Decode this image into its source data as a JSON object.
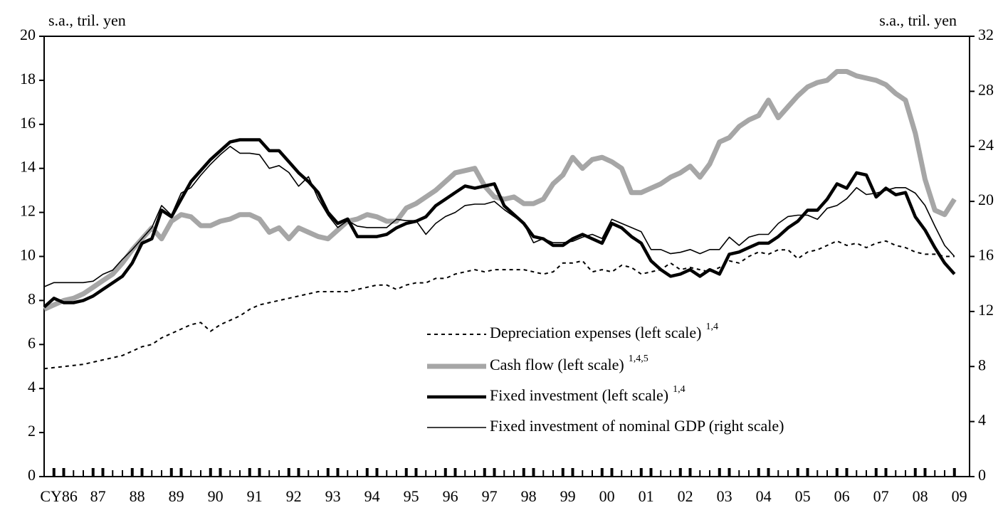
{
  "chart_data": {
    "type": "line",
    "y_label": "s.a., tril. yen",
    "y2_label": "s.a., tril. yen",
    "categories": [
      null,
      "CY86",
      null,
      null,
      null,
      "87",
      null,
      null,
      null,
      "88",
      null,
      null,
      null,
      "89",
      null,
      null,
      null,
      "90",
      null,
      null,
      null,
      "91",
      null,
      null,
      null,
      "92",
      null,
      null,
      null,
      "93",
      null,
      null,
      null,
      "94",
      null,
      null,
      null,
      "95",
      null,
      null,
      null,
      "96",
      null,
      null,
      null,
      "97",
      null,
      null,
      null,
      "98",
      null,
      null,
      null,
      "99",
      null,
      null,
      null,
      "00",
      null,
      null,
      null,
      "01",
      null,
      null,
      null,
      "02",
      null,
      null,
      null,
      "03",
      null,
      null,
      null,
      "04",
      null,
      null,
      null,
      "05",
      null,
      null,
      null,
      "06",
      null,
      null,
      null,
      "07",
      null,
      null,
      null,
      "08",
      null,
      null,
      null,
      "09"
    ],
    "ylim": [
      0,
      20
    ],
    "yticks": [
      0,
      2,
      4,
      6,
      8,
      10,
      12,
      14,
      16,
      18,
      20
    ],
    "y2lim": [
      0,
      32
    ],
    "y2ticks": [
      0,
      4,
      8,
      12,
      16,
      20,
      24,
      28,
      32
    ],
    "series": [
      {
        "name": "Depreciation expenses (left scale)",
        "footnote_marks": "1,4",
        "color": "#000000",
        "width": 2,
        "dash": "5,5",
        "values": [
          4.9,
          4.95,
          5.0,
          5.05,
          5.1,
          5.2,
          5.3,
          5.4,
          5.5,
          5.7,
          5.9,
          6.0,
          6.3,
          6.5,
          6.7,
          6.9,
          7.0,
          6.6,
          6.9,
          7.1,
          7.3,
          7.6,
          7.8,
          7.9,
          8.0,
          8.1,
          8.2,
          8.3,
          8.4,
          8.4,
          8.4,
          8.4,
          8.5,
          8.6,
          8.7,
          8.7,
          8.5,
          8.7,
          8.8,
          8.8,
          9.0,
          9.0,
          9.2,
          9.3,
          9.4,
          9.3,
          9.4,
          9.4,
          9.4,
          9.4,
          9.3,
          9.2,
          9.3,
          9.7,
          9.7,
          9.8,
          9.3,
          9.4,
          9.3,
          9.6,
          9.5,
          9.2,
          9.3,
          9.4,
          9.7,
          9.4,
          9.5,
          9.4,
          9.3,
          9.5,
          9.8,
          9.7,
          10.0,
          10.2,
          10.1,
          10.3,
          10.3,
          9.9,
          10.2,
          10.3,
          10.5,
          10.7,
          10.5,
          10.6,
          10.4,
          10.6,
          10.7,
          10.5,
          10.4,
          10.2,
          10.1,
          10.1,
          10.0,
          10.0
        ]
      },
      {
        "name": "Cash flow (left scale)",
        "footnote_marks": "1,4,5",
        "color": "#a6a6a6",
        "width": 7,
        "dash": "none",
        "values": [
          7.6,
          7.8,
          8.0,
          8.1,
          8.3,
          8.6,
          8.9,
          9.2,
          9.7,
          10.3,
          10.8,
          11.3,
          10.8,
          11.6,
          11.9,
          11.8,
          11.4,
          11.4,
          11.6,
          11.7,
          11.9,
          11.9,
          11.7,
          11.1,
          11.3,
          10.8,
          11.3,
          11.1,
          10.9,
          10.8,
          11.2,
          11.6,
          11.7,
          11.9,
          11.8,
          11.6,
          11.6,
          12.2,
          12.4,
          12.7,
          13.0,
          13.4,
          13.8,
          13.9,
          14.0,
          13.2,
          12.7,
          12.6,
          12.7,
          12.4,
          12.4,
          12.6,
          13.3,
          13.7,
          14.5,
          14.0,
          14.4,
          14.5,
          14.3,
          14.0,
          12.9,
          12.9,
          13.1,
          13.3,
          13.6,
          13.8,
          14.1,
          13.6,
          14.2,
          15.2,
          15.4,
          15.9,
          16.2,
          16.4,
          17.1,
          16.3,
          16.8,
          17.3,
          17.7,
          17.9,
          18.0,
          18.4,
          18.4,
          18.2,
          18.1,
          18.0,
          17.8,
          17.4,
          17.1,
          15.6,
          13.5,
          12.1,
          11.9,
          12.6
        ]
      },
      {
        "name": "Fixed investment (left scale)",
        "footnote_marks": "1,4",
        "color": "#000000",
        "width": 4.5,
        "dash": "none",
        "values": [
          7.7,
          8.1,
          7.9,
          7.9,
          8.0,
          8.2,
          8.5,
          8.8,
          9.1,
          9.7,
          10.6,
          10.8,
          12.1,
          11.8,
          12.6,
          13.4,
          13.9,
          14.4,
          14.8,
          15.2,
          15.3,
          15.3,
          15.3,
          14.8,
          14.8,
          14.3,
          13.8,
          13.4,
          12.9,
          12.0,
          11.5,
          11.7,
          10.9,
          10.9,
          10.9,
          11.0,
          11.3,
          11.5,
          11.6,
          11.8,
          12.3,
          12.6,
          12.9,
          13.2,
          13.1,
          13.2,
          13.3,
          12.3,
          11.9,
          11.5,
          10.9,
          10.8,
          10.5,
          10.5,
          10.8,
          11.0,
          10.8,
          10.6,
          11.5,
          11.3,
          10.9,
          10.6,
          9.8,
          9.4,
          9.1,
          9.2,
          9.4,
          9.1,
          9.4,
          9.2,
          10.1,
          10.2,
          10.4,
          10.6,
          10.6,
          10.9,
          11.3,
          11.6,
          12.1,
          12.1,
          12.6,
          13.3,
          13.1,
          13.8,
          13.7,
          12.7,
          13.1,
          12.8,
          12.9,
          11.8,
          11.2,
          10.4,
          9.7,
          9.2
        ]
      },
      {
        "name": "Fixed investment of nominal GDP (right scale)",
        "color": "#000000",
        "width": 1.6,
        "dash": "none",
        "axis": "y2",
        "values": [
          13.8,
          14.1,
          14.1,
          14.1,
          14.1,
          14.2,
          14.7,
          15.0,
          15.8,
          16.5,
          17.3,
          18.1,
          19.7,
          19.0,
          20.6,
          21.0,
          21.9,
          22.7,
          23.4,
          24.0,
          23.5,
          23.5,
          23.4,
          22.4,
          22.6,
          22.1,
          21.1,
          21.8,
          20.2,
          19.0,
          18.1,
          18.6,
          18.2,
          18.1,
          18.1,
          18.1,
          18.7,
          18.6,
          18.6,
          17.6,
          18.4,
          18.9,
          19.2,
          19.7,
          19.8,
          19.8,
          20.0,
          19.4,
          18.9,
          18.4,
          17.0,
          17.3,
          17.0,
          17.0,
          17.1,
          17.4,
          17.6,
          17.3,
          18.7,
          18.4,
          18.1,
          17.8,
          16.5,
          16.5,
          16.2,
          16.3,
          16.5,
          16.2,
          16.5,
          16.5,
          17.4,
          16.8,
          17.4,
          17.6,
          17.6,
          18.4,
          18.9,
          19.0,
          19.0,
          18.7,
          19.5,
          19.7,
          20.2,
          21.0,
          20.5,
          20.6,
          20.8,
          21.0,
          21.0,
          20.6,
          19.7,
          18.2,
          16.8,
          16.0
        ]
      }
    ]
  }
}
